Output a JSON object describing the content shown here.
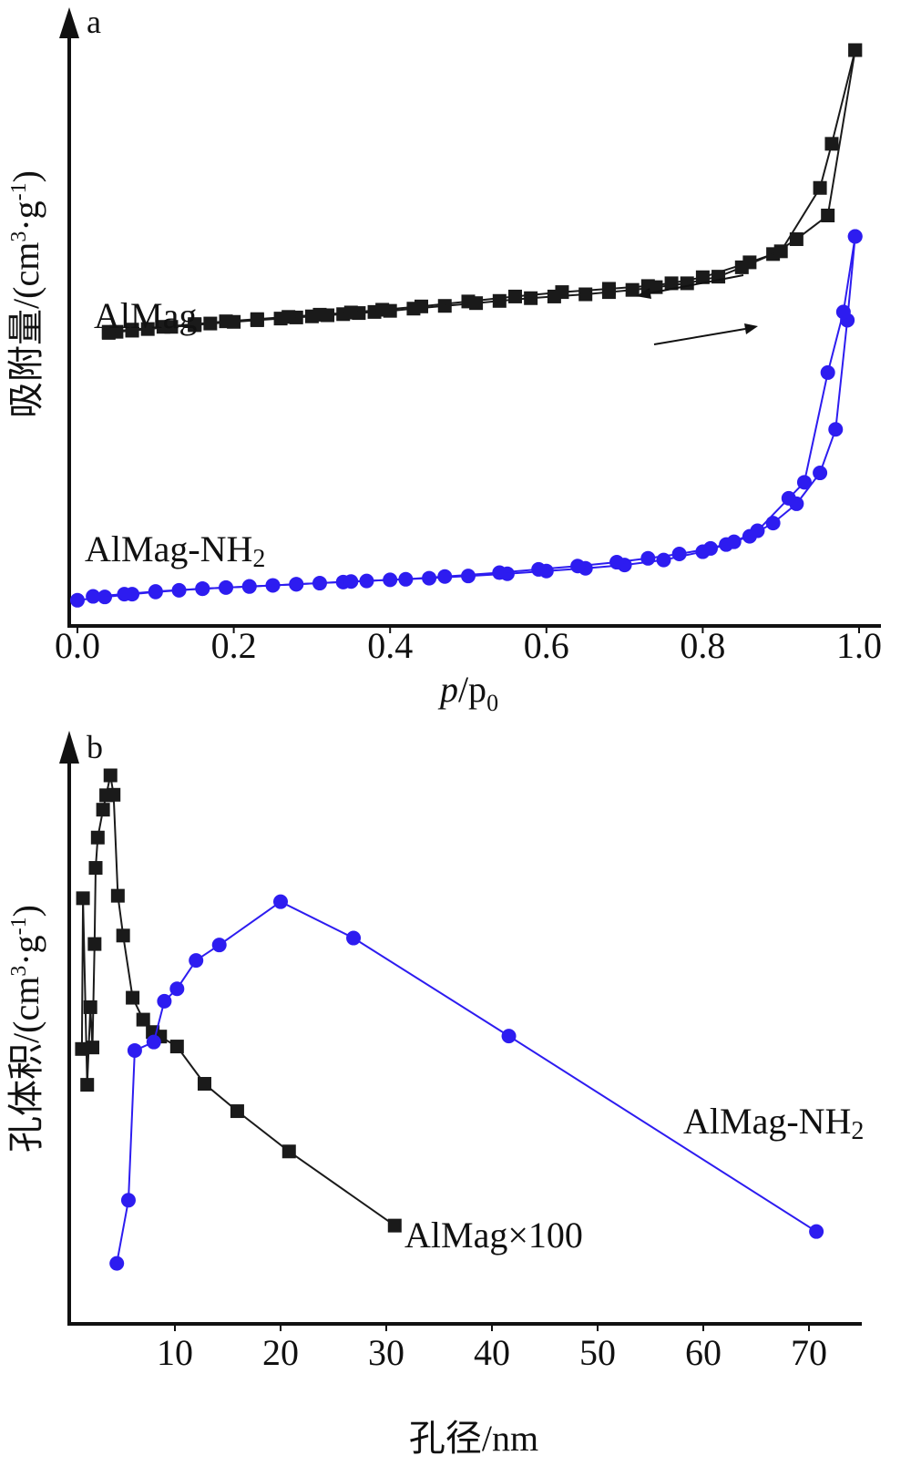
{
  "chart_data": [
    {
      "panel": "a",
      "type": "line",
      "xlabel": "p/p0",
      "xlabel_italic": "p",
      "xlabel_rest": "/p",
      "xlabel_sub": "0",
      "ylabel": "吸附量/(cm³·g⁻¹)",
      "ylabel_main": "吸附量/(cm",
      "ylabel_sup1": "3",
      "ylabel_mid": "·g",
      "ylabel_sup2": "-1",
      "ylabel_end": ")",
      "xlim": [
        0.0,
        1.0
      ],
      "ylim": [
        0,
        100
      ],
      "y_ticks_shown": false,
      "x_ticks": [
        0.0,
        0.2,
        0.4,
        0.6,
        0.8,
        1.0
      ],
      "x_tick_labels": [
        "0.0",
        "0.2",
        "0.4",
        "0.6",
        "0.8",
        "1.0"
      ],
      "annotations": [
        "adsorption arrow (right)",
        "desorption arrow (left)"
      ],
      "series": [
        {
          "name": "AlMag",
          "color": "#1a1a1a",
          "marker": "square",
          "adsorption": {
            "x": [
              0.04,
              0.05,
              0.07,
              0.09,
              0.12,
              0.15,
              0.17,
              0.2,
              0.23,
              0.26,
              0.28,
              0.3,
              0.32,
              0.34,
              0.36,
              0.38,
              0.4,
              0.43,
              0.47,
              0.51,
              0.54,
              0.58,
              0.61,
              0.65,
              0.68,
              0.71,
              0.74,
              0.78,
              0.82,
              0.85,
              0.89,
              0.92,
              0.96,
              0.995
            ],
            "y": [
              48.7,
              48.9,
              49.1,
              49.4,
              49.8,
              50.1,
              50.4,
              50.7,
              51.0,
              51.3,
              51.5,
              51.7,
              51.9,
              52.1,
              52.3,
              52.5,
              52.7,
              53.1,
              53.6,
              54.1,
              54.5,
              55.0,
              55.3,
              55.7,
              56.1,
              56.5,
              57.0,
              57.7,
              58.9,
              60.6,
              63.0,
              65.7,
              70.0,
              100.0
            ]
          },
          "desorption": {
            "x": [
              0.995,
              0.965,
              0.95,
              0.9,
              0.86,
              0.8,
              0.76,
              0.73,
              0.68,
              0.62,
              0.56,
              0.5,
              0.44,
              0.39,
              0.35,
              0.31,
              0.27,
              0.23,
              0.19,
              0.15,
              0.11,
              0.07,
              0.04
            ],
            "y": [
              100.0,
              83.0,
              75.0,
              63.5,
              61.5,
              58.8,
              57.7,
              57.2,
              56.7,
              56.1,
              55.3,
              54.4,
              53.5,
              52.9,
              52.4,
              52.0,
              51.6,
              51.2,
              50.8,
              50.3,
              49.8,
              49.3,
              48.9
            ]
          }
        },
        {
          "name": "AlMag-NH2",
          "name_main": "AlMag-NH",
          "name_sub": "2",
          "color": "#2d1cf0",
          "marker": "circle",
          "adsorption": {
            "x": [
              0.0,
              0.035,
              0.07,
              0.1,
              0.13,
              0.16,
              0.19,
              0.22,
              0.25,
              0.28,
              0.31,
              0.34,
              0.37,
              0.4,
              0.45,
              0.5,
              0.55,
              0.6,
              0.65,
              0.7,
              0.75,
              0.8,
              0.83,
              0.86,
              0.89,
              0.92,
              0.95,
              0.97,
              0.985,
              0.995
            ],
            "y": [
              0.2,
              0.8,
              1.3,
              1.7,
              2.0,
              2.3,
              2.5,
              2.7,
              2.9,
              3.1,
              3.3,
              3.5,
              3.7,
              3.9,
              4.2,
              4.6,
              5.0,
              5.5,
              6.0,
              6.6,
              7.5,
              9.0,
              10.3,
              11.8,
              14.2,
              17.7,
              23.3,
              31.2,
              51.0,
              66.2
            ]
          },
          "desorption": {
            "x": [
              0.995,
              0.98,
              0.96,
              0.93,
              0.91,
              0.87,
              0.84,
              0.81,
              0.77,
              0.73,
              0.69,
              0.64,
              0.59,
              0.54,
              0.47,
              0.42,
              0.35,
              0.28,
              0.22,
              0.16,
              0.1,
              0.06,
              0.02
            ],
            "y": [
              66.2,
              52.5,
              41.5,
              21.6,
              18.7,
              12.8,
              10.8,
              9.6,
              8.6,
              7.8,
              7.1,
              6.4,
              5.8,
              5.2,
              4.5,
              4.0,
              3.6,
              3.1,
              2.7,
              2.3,
              1.8,
              1.3,
              0.9
            ]
          }
        }
      ]
    },
    {
      "panel": "b",
      "type": "line",
      "xlabel": "孔径/nm",
      "ylabel": "孔体积/(cm³·g⁻¹)",
      "ylabel_main": "孔体积/(cm",
      "ylabel_sup1": "3",
      "ylabel_mid": "·g",
      "ylabel_sup2": "-1",
      "ylabel_end": ")",
      "xlim": [
        0,
        75
      ],
      "ylim": [
        0,
        100
      ],
      "y_ticks_shown": false,
      "x_ticks": [
        10,
        20,
        30,
        40,
        50,
        60,
        70
      ],
      "x_tick_labels": [
        "10",
        "20",
        "30",
        "40",
        "50",
        "60",
        "70"
      ],
      "series": [
        {
          "name": "AlMag×100",
          "color": "#1a1a1a",
          "marker": "square",
          "x": [
            1.2,
            1.3,
            1.7,
            2.0,
            2.2,
            2.4,
            2.5,
            2.7,
            3.2,
            3.5,
            3.9,
            4.2,
            4.6,
            5.1,
            6.0,
            7.0,
            7.9,
            8.6,
            10.2,
            12.8,
            15.9,
            20.8,
            30.8
          ],
          "y": [
            45.0,
            75.3,
            37.8,
            53.4,
            45.3,
            66.1,
            81.4,
            87.5,
            93.1,
            96.0,
            100.0,
            96.1,
            75.8,
            67.8,
            55.3,
            50.9,
            48.4,
            47.5,
            45.5,
            38.0,
            32.5,
            24.4,
            9.5
          ]
        },
        {
          "name": "AlMag-NH2",
          "name_main": "AlMag-NH",
          "name_sub": "2",
          "color": "#2d1cf0",
          "marker": "circle",
          "x": [
            4.5,
            5.6,
            6.2,
            8.0,
            9.0,
            10.2,
            12.0,
            14.2,
            20.0,
            26.9,
            41.6,
            70.7
          ],
          "y": [
            1.9,
            14.6,
            44.7,
            46.4,
            54.6,
            57.1,
            62.8,
            65.9,
            74.6,
            67.3,
            47.6,
            8.3
          ]
        }
      ]
    }
  ]
}
